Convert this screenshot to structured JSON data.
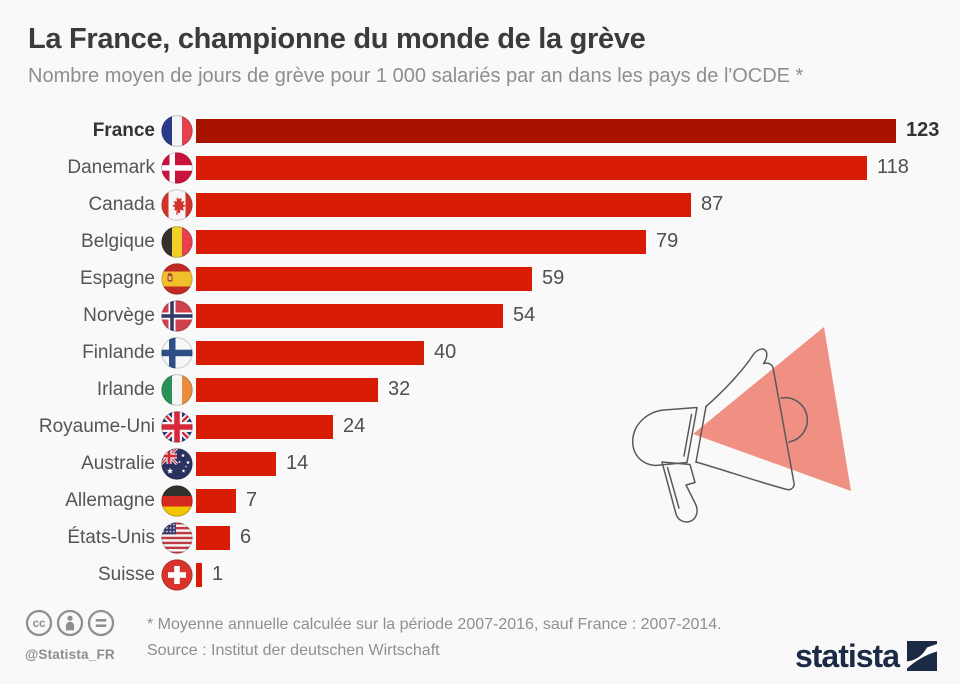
{
  "chart_data": {
    "type": "bar",
    "orientation": "horizontal",
    "title": "La France, championne du monde de la grève",
    "subtitle": "Nombre moyen de jours de grève pour 1 000 salariés par an dans les pays de l'OCDE *",
    "categories": [
      "France",
      "Danemark",
      "Canada",
      "Belgique",
      "Espagne",
      "Norvège",
      "Finlande",
      "Irlande",
      "Royaume-Uni",
      "Australie",
      "Allemagne",
      "États-Unis",
      "Suisse"
    ],
    "values": [
      123,
      118,
      87,
      79,
      59,
      54,
      40,
      32,
      24,
      14,
      7,
      6,
      1
    ],
    "flags": [
      "france",
      "denmark",
      "canada",
      "belgium",
      "spain",
      "norway",
      "finland",
      "ireland",
      "uk",
      "australia",
      "germany",
      "usa",
      "switzerland"
    ],
    "highlight_category": "France",
    "value_labels_shown": true,
    "xlim": [
      0,
      130
    ],
    "grid": false,
    "legend": false
  },
  "colors": {
    "background": "#f9f9f9",
    "bar": "#d81c05",
    "bar_highlight": "#a81300",
    "megaphone_triangle": "#ef9082",
    "megaphone_outline": "#5a5a5a",
    "brand_navy": "#1b2b45",
    "text_dark": "#3b3b3b",
    "text_gray": "#8e8e8e"
  },
  "footer": {
    "handle": "@Statista_FR",
    "footnote": "* Moyenne annuelle calculée sur la période 2007-2016, sauf France : 2007-2014.",
    "source": "Source : Institut der deutschen Wirtschaft",
    "brand": "statista",
    "license_icons": [
      "cc-icon",
      "attribution-person-icon",
      "no-derivatives-equals-icon"
    ]
  }
}
